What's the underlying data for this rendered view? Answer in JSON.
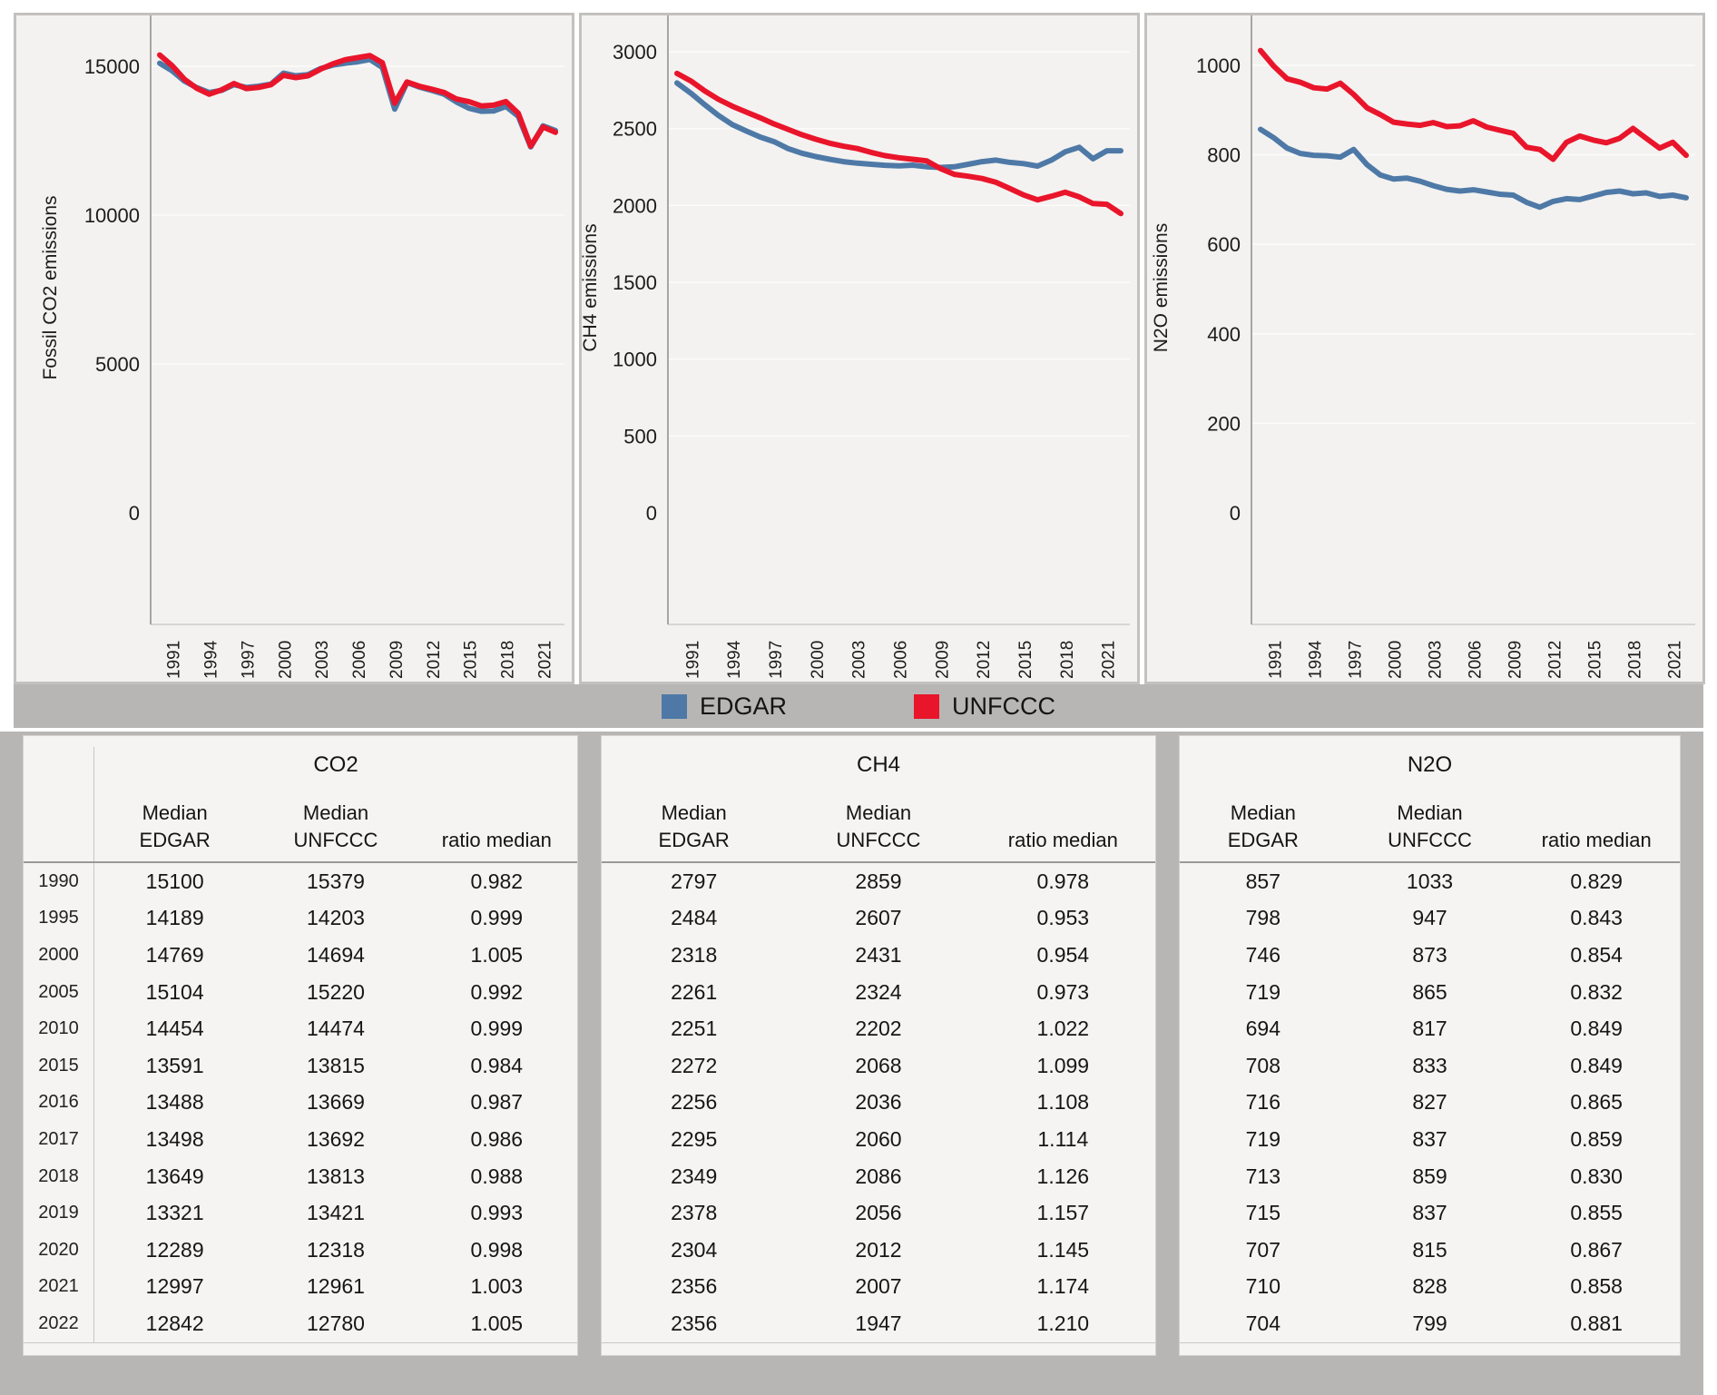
{
  "legend": {
    "items": [
      {
        "label": "EDGAR",
        "color": "#4e79a7"
      },
      {
        "label": "UNFCCC",
        "color": "#e9152b"
      }
    ]
  },
  "chart_data": [
    {
      "type": "line",
      "ylabel": "Fossil CO2 emissions",
      "x": [
        1990,
        1991,
        1992,
        1993,
        1994,
        1995,
        1996,
        1997,
        1998,
        1999,
        2000,
        2001,
        2002,
        2003,
        2004,
        2005,
        2006,
        2007,
        2008,
        2009,
        2010,
        2011,
        2012,
        2013,
        2014,
        2015,
        2016,
        2017,
        2018,
        2019,
        2020,
        2021,
        2022
      ],
      "x_tick_labels": [
        1991,
        1994,
        1997,
        2000,
        2003,
        2006,
        2009,
        2012,
        2015,
        2018,
        2021
      ],
      "ylim": [
        0,
        16000
      ],
      "yticks": [
        0,
        5000,
        10000,
        15000
      ],
      "grid": true,
      "legend_position": "bottom",
      "series": [
        {
          "name": "EDGAR",
          "color": "#4e79a7",
          "values": [
            15100,
            14850,
            14500,
            14280,
            14120,
            14189,
            14380,
            14290,
            14330,
            14400,
            14769,
            14680,
            14720,
            14920,
            15040,
            15104,
            15150,
            15230,
            14960,
            13560,
            14454,
            14300,
            14190,
            14060,
            13800,
            13591,
            13488,
            13498,
            13649,
            13321,
            12289,
            12997,
            12842
          ]
        },
        {
          "name": "UNFCCC",
          "color": "#e9152b",
          "values": [
            15379,
            15020,
            14560,
            14260,
            14060,
            14203,
            14420,
            14250,
            14290,
            14380,
            14694,
            14620,
            14680,
            14900,
            15080,
            15220,
            15290,
            15360,
            15120,
            13760,
            14474,
            14330,
            14230,
            14120,
            13900,
            13815,
            13669,
            13692,
            13813,
            13421,
            12318,
            12961,
            12780
          ]
        }
      ]
    },
    {
      "type": "line",
      "ylabel": "CH4 emissions",
      "x": [
        1990,
        1991,
        1992,
        1993,
        1994,
        1995,
        1996,
        1997,
        1998,
        1999,
        2000,
        2001,
        2002,
        2003,
        2004,
        2005,
        2006,
        2007,
        2008,
        2009,
        2010,
        2011,
        2012,
        2013,
        2014,
        2015,
        2016,
        2017,
        2018,
        2019,
        2020,
        2021,
        2022
      ],
      "x_tick_labels": [
        1991,
        1994,
        1997,
        2000,
        2003,
        2006,
        2009,
        2012,
        2015,
        2018,
        2021
      ],
      "ylim": [
        0,
        3100
      ],
      "yticks": [
        0,
        500,
        1000,
        1500,
        2000,
        2500,
        3000
      ],
      "grid": true,
      "legend_position": "bottom",
      "series": [
        {
          "name": "EDGAR",
          "color": "#4e79a7",
          "values": [
            2797,
            2730,
            2655,
            2585,
            2525,
            2484,
            2445,
            2415,
            2370,
            2340,
            2318,
            2300,
            2285,
            2275,
            2268,
            2261,
            2257,
            2262,
            2252,
            2247,
            2251,
            2268,
            2285,
            2295,
            2280,
            2272,
            2256,
            2295,
            2349,
            2378,
            2304,
            2356,
            2356
          ]
        },
        {
          "name": "UNFCCC",
          "color": "#e9152b",
          "values": [
            2859,
            2810,
            2745,
            2690,
            2645,
            2607,
            2570,
            2530,
            2495,
            2460,
            2431,
            2405,
            2385,
            2370,
            2345,
            2324,
            2310,
            2300,
            2290,
            2240,
            2202,
            2190,
            2175,
            2150,
            2110,
            2068,
            2036,
            2060,
            2086,
            2056,
            2012,
            2007,
            1947
          ]
        }
      ]
    },
    {
      "type": "line",
      "ylabel": "N2O emissions",
      "x": [
        1990,
        1991,
        1992,
        1993,
        1994,
        1995,
        1996,
        1997,
        1998,
        1999,
        2000,
        2001,
        2002,
        2003,
        2004,
        2005,
        2006,
        2007,
        2008,
        2009,
        2010,
        2011,
        2012,
        2013,
        2014,
        2015,
        2016,
        2017,
        2018,
        2019,
        2020,
        2021,
        2022
      ],
      "x_tick_labels": [
        1991,
        1994,
        1997,
        2000,
        2003,
        2006,
        2009,
        2012,
        2015,
        2018,
        2021
      ],
      "ylim": [
        0,
        1080
      ],
      "yticks": [
        0,
        200,
        400,
        600,
        800,
        1000
      ],
      "grid": true,
      "legend_position": "bottom",
      "series": [
        {
          "name": "EDGAR",
          "color": "#4e79a7",
          "values": [
            857,
            838,
            815,
            803,
            799,
            798,
            795,
            812,
            778,
            755,
            746,
            748,
            741,
            731,
            723,
            719,
            722,
            717,
            712,
            710,
            694,
            683,
            696,
            702,
            700,
            708,
            716,
            719,
            713,
            715,
            707,
            710,
            704
          ]
        },
        {
          "name": "UNFCCC",
          "color": "#e9152b",
          "values": [
            1033,
            998,
            970,
            962,
            950,
            947,
            960,
            935,
            905,
            890,
            873,
            869,
            866,
            872,
            863,
            865,
            876,
            862,
            855,
            848,
            817,
            812,
            790,
            828,
            842,
            833,
            827,
            837,
            859,
            837,
            815,
            828,
            799
          ]
        }
      ]
    }
  ],
  "tables": [
    {
      "title": "CO2",
      "show_years": true,
      "years": [
        "1990",
        "1995",
        "2000",
        "2005",
        "2010",
        "2015",
        "2016",
        "2017",
        "2018",
        "2019",
        "2020",
        "2021",
        "2022"
      ],
      "col_headers": [
        [
          "Median",
          "EDGAR"
        ],
        [
          "Median",
          "UNFCCC"
        ],
        [
          "ratio median"
        ]
      ],
      "rows": [
        [
          "15100",
          "15379",
          "0.982"
        ],
        [
          "14189",
          "14203",
          "0.999"
        ],
        [
          "14769",
          "14694",
          "1.005"
        ],
        [
          "15104",
          "15220",
          "0.992"
        ],
        [
          "14454",
          "14474",
          "0.999"
        ],
        [
          "13591",
          "13815",
          "0.984"
        ],
        [
          "13488",
          "13669",
          "0.987"
        ],
        [
          "13498",
          "13692",
          "0.986"
        ],
        [
          "13649",
          "13813",
          "0.988"
        ],
        [
          "13321",
          "13421",
          "0.993"
        ],
        [
          "12289",
          "12318",
          "0.998"
        ],
        [
          "12997",
          "12961",
          "1.003"
        ],
        [
          "12842",
          "12780",
          "1.005"
        ]
      ]
    },
    {
      "title": "CH4",
      "show_years": false,
      "col_headers": [
        [
          "Median",
          "EDGAR"
        ],
        [
          "Median",
          "UNFCCC"
        ],
        [
          "ratio median"
        ]
      ],
      "rows": [
        [
          "2797",
          "2859",
          "0.978"
        ],
        [
          "2484",
          "2607",
          "0.953"
        ],
        [
          "2318",
          "2431",
          "0.954"
        ],
        [
          "2261",
          "2324",
          "0.973"
        ],
        [
          "2251",
          "2202",
          "1.022"
        ],
        [
          "2272",
          "2068",
          "1.099"
        ],
        [
          "2256",
          "2036",
          "1.108"
        ],
        [
          "2295",
          "2060",
          "1.114"
        ],
        [
          "2349",
          "2086",
          "1.126"
        ],
        [
          "2378",
          "2056",
          "1.157"
        ],
        [
          "2304",
          "2012",
          "1.145"
        ],
        [
          "2356",
          "2007",
          "1.174"
        ],
        [
          "2356",
          "1947",
          "1.210"
        ]
      ]
    },
    {
      "title": "N2O",
      "show_years": false,
      "col_headers": [
        [
          "Median",
          "EDGAR"
        ],
        [
          "Median",
          "UNFCCC"
        ],
        [
          "ratio median"
        ]
      ],
      "rows": [
        [
          "857",
          "1033",
          "0.829"
        ],
        [
          "798",
          "947",
          "0.843"
        ],
        [
          "746",
          "873",
          "0.854"
        ],
        [
          "719",
          "865",
          "0.832"
        ],
        [
          "694",
          "817",
          "0.849"
        ],
        [
          "708",
          "833",
          "0.849"
        ],
        [
          "716",
          "827",
          "0.865"
        ],
        [
          "719",
          "837",
          "0.859"
        ],
        [
          "713",
          "859",
          "0.830"
        ],
        [
          "715",
          "837",
          "0.855"
        ],
        [
          "707",
          "815",
          "0.867"
        ],
        [
          "710",
          "828",
          "0.858"
        ],
        [
          "704",
          "799",
          "0.881"
        ]
      ]
    }
  ]
}
